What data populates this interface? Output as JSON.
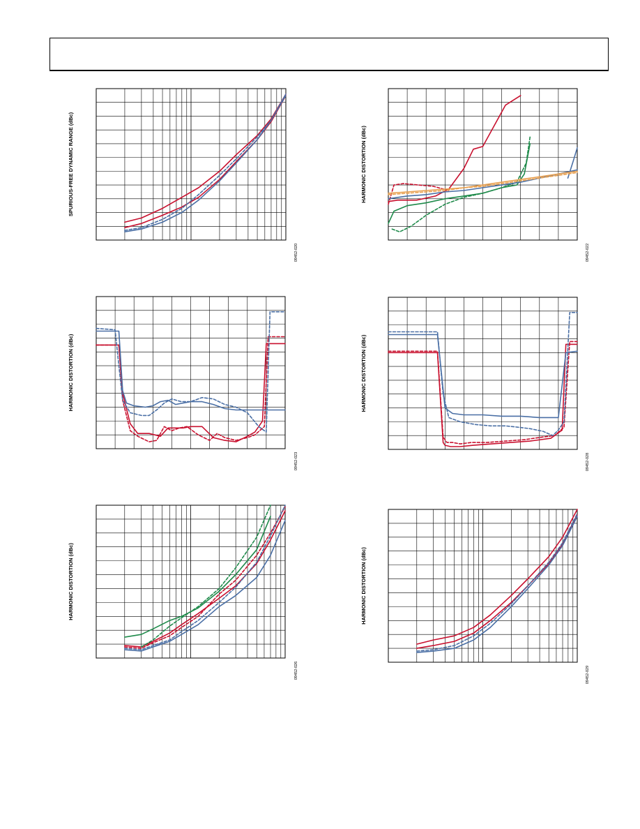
{
  "colors": {
    "red": "#c8102e",
    "blue": "#4a6fa5",
    "green": "#1e8a4a",
    "orange": "#e8a050"
  },
  "chart_data": [
    {
      "type": "line",
      "ylabel": "SPURIOUS-FREE DYNAMIC RANGE (dBc)",
      "fig_id": "09452-020",
      "xscale": "log",
      "xlim": [
        1,
        100
      ],
      "ylim": [
        0,
        11
      ],
      "grid": true,
      "series": [
        {
          "color": "red",
          "style": "solid",
          "x": [
            2,
            3,
            5,
            8,
            12,
            20,
            30,
            50,
            70,
            100
          ],
          "y": [
            1.3,
            1.6,
            2.3,
            3.1,
            3.8,
            5.0,
            6.2,
            7.6,
            8.8,
            10.6
          ]
        },
        {
          "color": "red",
          "style": "solid",
          "x": [
            2,
            3,
            5,
            8,
            12,
            20,
            30,
            50,
            70,
            100
          ],
          "y": [
            0.9,
            1.2,
            1.8,
            2.4,
            3.1,
            4.4,
            5.7,
            7.3,
            8.6,
            10.5
          ]
        },
        {
          "color": "blue",
          "style": "solid",
          "x": [
            2,
            3,
            5,
            8,
            12,
            20,
            30,
            50,
            70,
            100
          ],
          "y": [
            0.6,
            0.8,
            1.3,
            2.0,
            2.9,
            4.3,
            5.6,
            7.3,
            8.7,
            10.6
          ]
        },
        {
          "color": "blue",
          "style": "dashed",
          "x": [
            2,
            3,
            5,
            8,
            12,
            20,
            30,
            50,
            70,
            100
          ],
          "y": [
            0.7,
            0.9,
            1.5,
            2.3,
            3.3,
            4.7,
            5.9,
            7.5,
            8.7,
            10.5
          ]
        }
      ]
    },
    {
      "type": "line",
      "ylabel": "HARMONIC DISTORTION (dBc)",
      "fig_id": "09452-022",
      "xscale": "linear",
      "xlim": [
        0,
        10
      ],
      "ylim": [
        0,
        11
      ],
      "grid": true,
      "series": [
        {
          "color": "red",
          "style": "solid",
          "x": [
            0,
            0.5,
            1.5,
            2.5,
            3.2,
            4.0,
            4.5,
            5.0,
            5.6,
            6.2,
            7.0
          ],
          "y": [
            2.8,
            2.9,
            2.9,
            3.2,
            3.7,
            5.2,
            6.6,
            6.8,
            8.3,
            9.8,
            10.5
          ]
        },
        {
          "color": "red",
          "style": "dashed",
          "x": [
            0,
            0.3,
            0.8,
            1.6,
            2.4,
            3.2
          ],
          "y": [
            2.6,
            4.0,
            4.1,
            4.0,
            3.9,
            3.6
          ]
        },
        {
          "color": "green",
          "style": "solid",
          "x": [
            0,
            0.3,
            1.0,
            2.0,
            3.0,
            4.0,
            5.0,
            6.0,
            6.8,
            7.2,
            7.5
          ],
          "y": [
            1.2,
            2.1,
            2.5,
            2.7,
            3.0,
            3.2,
            3.4,
            3.8,
            4.0,
            4.8,
            7.0
          ]
        },
        {
          "color": "green",
          "style": "dashed",
          "x": [
            0.2,
            0.6,
            1.2,
            2.0,
            3.0,
            4.0,
            5.0,
            6.0,
            6.8,
            7.3,
            7.5
          ],
          "y": [
            0.8,
            0.6,
            1.0,
            1.8,
            2.6,
            3.1,
            3.4,
            3.8,
            4.2,
            5.6,
            7.5
          ]
        },
        {
          "color": "blue",
          "style": "solid",
          "x": [
            0,
            1,
            2,
            3,
            4,
            5,
            6,
            7,
            8,
            9,
            10
          ],
          "y": [
            3.0,
            3.2,
            3.3,
            3.5,
            3.6,
            3.8,
            4.0,
            4.2,
            4.5,
            4.8,
            5.1
          ]
        },
        {
          "color": "blue",
          "style": "solid",
          "x": [
            9.5,
            9.8,
            10.0
          ],
          "y": [
            4.5,
            5.8,
            6.7
          ]
        },
        {
          "color": "orange",
          "style": "solid",
          "x": [
            0,
            1,
            2,
            3,
            4,
            5,
            6,
            7,
            8,
            9,
            10
          ],
          "y": [
            3.4,
            3.5,
            3.6,
            3.7,
            3.8,
            4.0,
            4.2,
            4.4,
            4.6,
            4.8,
            5.0
          ]
        },
        {
          "color": "orange",
          "style": "dashed",
          "x": [
            0,
            1,
            2,
            3,
            4,
            5,
            6,
            7,
            8,
            9,
            10
          ],
          "y": [
            3.3,
            3.4,
            3.5,
            3.6,
            3.8,
            3.9,
            4.1,
            4.3,
            4.5,
            4.7,
            4.9
          ]
        }
      ]
    },
    {
      "type": "line",
      "ylabel": "HARMONIC DISTORTION (dBc)",
      "fig_id": "09452-023",
      "xscale": "linear",
      "xlim": [
        0,
        10
      ],
      "ylim": [
        0,
        11
      ],
      "grid": true,
      "series": [
        {
          "color": "red",
          "style": "solid",
          "x": [
            0,
            1.2,
            1.4,
            1.8,
            2.2,
            2.8,
            3.4,
            3.8,
            4.2,
            4.6,
            5.0,
            5.6,
            6.2,
            6.8,
            7.4,
            8.0,
            8.4,
            8.8,
            9.0,
            10
          ],
          "y": [
            7.5,
            7.5,
            4.0,
            1.8,
            1.1,
            1.1,
            0.9,
            1.5,
            1.5,
            1.5,
            1.6,
            1.6,
            0.8,
            0.6,
            0.5,
            0.9,
            1.2,
            2.0,
            7.6,
            7.6
          ]
        },
        {
          "color": "red",
          "style": "dashed",
          "x": [
            0,
            1.2,
            1.4,
            1.8,
            2.2,
            2.8,
            3.2,
            3.6,
            4.0,
            4.4,
            4.8,
            5.4,
            6.0,
            6.4,
            6.8,
            7.4,
            8.0,
            8.4,
            8.9,
            9.1,
            10
          ],
          "y": [
            7.5,
            7.5,
            3.5,
            1.3,
            0.9,
            0.5,
            0.6,
            1.6,
            1.3,
            1.5,
            1.6,
            1.0,
            0.6,
            1.1,
            0.8,
            0.6,
            0.8,
            1.0,
            1.6,
            8.1,
            8.1
          ]
        },
        {
          "color": "blue",
          "style": "solid",
          "x": [
            0,
            1.2,
            1.4,
            1.6,
            2.0,
            2.6,
            3.0,
            3.4,
            3.8,
            4.2,
            4.6,
            5.0,
            5.6,
            6.2,
            6.8,
            7.4,
            8.0,
            8.6,
            8.9,
            10
          ],
          "y": [
            8.5,
            8.5,
            4.2,
            3.3,
            3.1,
            3.0,
            3.1,
            3.4,
            3.5,
            3.2,
            3.3,
            3.4,
            3.4,
            3.2,
            2.9,
            2.8,
            2.8,
            2.8,
            2.8,
            2.8
          ]
        },
        {
          "color": "blue",
          "style": "dashed",
          "x": [
            0,
            1.0,
            1.2,
            1.4,
            1.8,
            2.4,
            2.8,
            3.2,
            3.6,
            4.0,
            4.5,
            5.0,
            5.6,
            6.2,
            6.8,
            7.4,
            8.0,
            8.6,
            9.0,
            9.2,
            10
          ],
          "y": [
            8.7,
            8.6,
            6.0,
            3.5,
            2.6,
            2.4,
            2.4,
            2.8,
            3.3,
            3.6,
            3.4,
            3.4,
            3.7,
            3.6,
            3.2,
            3.0,
            2.6,
            1.6,
            1.2,
            9.9,
            9.9
          ]
        }
      ]
    },
    {
      "type": "line",
      "ylabel": "HARMONIC DISTORTION (dBc)",
      "fig_id": "09452-028",
      "xscale": "linear",
      "xlim": [
        0,
        10
      ],
      "ylim": [
        0,
        11
      ],
      "grid": true,
      "series": [
        {
          "color": "red",
          "style": "solid",
          "x": [
            0,
            2.6,
            2.9,
            3.0,
            3.3,
            3.8,
            4.5,
            5.5,
            6.5,
            7.5,
            8.6,
            9.2,
            9.4,
            10
          ],
          "y": [
            7.0,
            7.0,
            0.5,
            0.3,
            0.2,
            0.2,
            0.3,
            0.4,
            0.5,
            0.6,
            0.8,
            1.4,
            7.6,
            7.6
          ]
        },
        {
          "color": "red",
          "style": "dashed",
          "x": [
            0,
            2.6,
            2.9,
            3.1,
            3.4,
            3.8,
            4.4,
            5.2,
            6.2,
            7.2,
            8.2,
            8.8,
            9.3,
            9.6,
            10
          ],
          "y": [
            7.1,
            7.1,
            0.9,
            0.5,
            0.5,
            0.4,
            0.5,
            0.5,
            0.6,
            0.7,
            0.9,
            1.0,
            1.6,
            7.8,
            7.8
          ]
        },
        {
          "color": "blue",
          "style": "solid",
          "x": [
            0,
            2.6,
            3.0,
            3.4,
            4.0,
            5.0,
            6.0,
            7.0,
            8.0,
            9.0,
            9.4,
            10
          ],
          "y": [
            8.3,
            8.3,
            3.0,
            2.6,
            2.5,
            2.5,
            2.4,
            2.4,
            2.3,
            2.3,
            7.0,
            7.1
          ]
        },
        {
          "color": "blue",
          "style": "dashed",
          "x": [
            0,
            2.6,
            2.9,
            3.2,
            3.8,
            4.6,
            5.4,
            6.2,
            6.9,
            7.5,
            8.2,
            8.7,
            9.0,
            9.3,
            9.6,
            10
          ],
          "y": [
            8.5,
            8.5,
            4.0,
            2.3,
            2.0,
            1.8,
            1.7,
            1.7,
            1.6,
            1.5,
            1.3,
            1.0,
            1.4,
            2.0,
            9.9,
            9.9
          ]
        }
      ]
    },
    {
      "type": "line",
      "ylabel": "HARMONIC DISTORTION (dBc)",
      "fig_id": "09452-026",
      "xscale": "log",
      "xlim": [
        1,
        100
      ],
      "ylim": [
        0,
        11
      ],
      "grid": true,
      "series": [
        {
          "color": "red",
          "style": "solid",
          "x": [
            2,
            3,
            4,
            6,
            8,
            12,
            20,
            30,
            50,
            70,
            100
          ],
          "y": [
            0.9,
            0.8,
            1.2,
            1.8,
            2.4,
            3.2,
            4.3,
            5.2,
            6.8,
            8.5,
            10.6
          ]
        },
        {
          "color": "red",
          "style": "dashed",
          "x": [
            2,
            3,
            4,
            6,
            8,
            12,
            20,
            30,
            50,
            70,
            100
          ],
          "y": [
            0.8,
            0.7,
            1.1,
            1.6,
            2.2,
            3.0,
            4.6,
            5.6,
            7.4,
            9.0,
            10.9
          ]
        },
        {
          "color": "blue",
          "style": "solid",
          "x": [
            2,
            3,
            4,
            6,
            8,
            12,
            20,
            30,
            50,
            70,
            100
          ],
          "y": [
            0.6,
            0.5,
            0.8,
            1.2,
            1.7,
            2.4,
            3.7,
            4.5,
            5.8,
            7.4,
            9.9
          ]
        },
        {
          "color": "blue",
          "style": "dashed",
          "x": [
            2,
            3,
            4,
            6,
            8,
            12,
            20,
            30,
            50,
            70,
            100
          ],
          "y": [
            0.7,
            0.6,
            0.9,
            1.3,
            1.9,
            2.7,
            4.0,
            5.1,
            6.9,
            8.8,
            11.0
          ]
        },
        {
          "color": "green",
          "style": "solid",
          "x": [
            2,
            3,
            4,
            6,
            8,
            12,
            20,
            30,
            50,
            70
          ],
          "y": [
            1.5,
            1.7,
            2.1,
            2.7,
            3.0,
            3.6,
            4.8,
            6.0,
            7.8,
            10.2
          ]
        },
        {
          "color": "green",
          "style": "dashed",
          "x": [
            3,
            4,
            6,
            8,
            12,
            20,
            30,
            50,
            70
          ],
          "y": [
            0.8,
            1.3,
            2.3,
            2.9,
            3.7,
            5.0,
            6.5,
            8.7,
            11.0
          ]
        }
      ]
    },
    {
      "type": "line",
      "ylabel": "HARMONIC DISTORTION (dBc)",
      "fig_id": "09452-029",
      "xscale": "log",
      "xlim": [
        1,
        100
      ],
      "ylim": [
        0,
        11
      ],
      "grid": true,
      "series": [
        {
          "color": "red",
          "style": "solid",
          "x": [
            2,
            3,
            5,
            8,
            12,
            20,
            30,
            50,
            70,
            100
          ],
          "y": [
            1.0,
            1.2,
            1.5,
            2.1,
            3.0,
            4.3,
            5.5,
            7.1,
            8.5,
            10.6
          ]
        },
        {
          "color": "red",
          "style": "solid",
          "x": [
            2,
            3,
            5,
            8,
            12,
            20,
            30,
            50,
            70,
            100
          ],
          "y": [
            1.3,
            1.6,
            1.9,
            2.5,
            3.4,
            4.8,
            6.0,
            7.6,
            9.0,
            11.0
          ]
        },
        {
          "color": "blue",
          "style": "solid",
          "x": [
            2,
            3,
            5,
            8,
            12,
            20,
            30,
            50,
            70,
            100
          ],
          "y": [
            0.7,
            0.8,
            1.0,
            1.6,
            2.5,
            4.0,
            5.3,
            7.0,
            8.4,
            10.5
          ]
        },
        {
          "color": "blue",
          "style": "dashed",
          "x": [
            2,
            3,
            5,
            8,
            12,
            20,
            30,
            50,
            70,
            100
          ],
          "y": [
            0.8,
            0.9,
            1.2,
            1.9,
            2.8,
            4.2,
            5.5,
            7.2,
            8.6,
            10.7
          ]
        }
      ]
    }
  ]
}
